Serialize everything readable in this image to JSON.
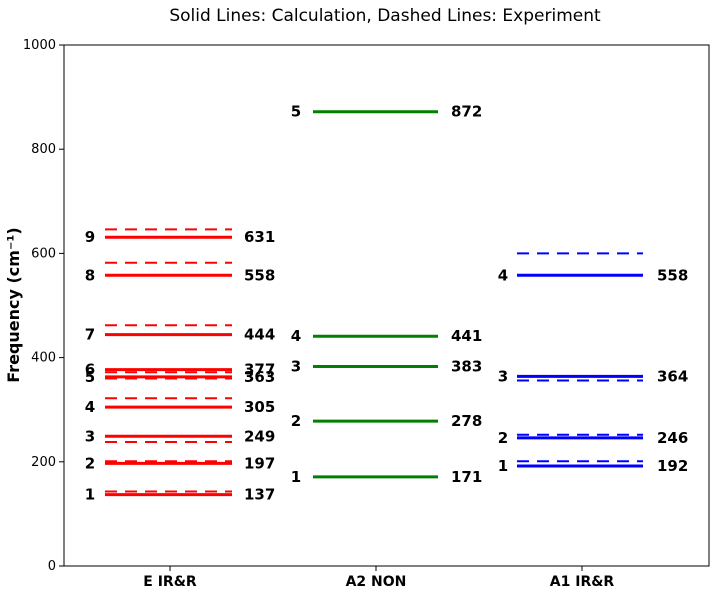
{
  "chart_data": {
    "type": "level-diagram",
    "title": "Solid Lines: Calculation, Dashed Lines: Experiment",
    "ylabel": "Frequency (cm⁻¹)",
    "ylim": [
      0,
      1000
    ],
    "yticks": [
      "0",
      "200",
      "400",
      "600",
      "800",
      "1000"
    ],
    "grid": false,
    "groups": [
      {
        "name": "E IR&R",
        "color": "#ff0000",
        "levels": [
          {
            "index": "1",
            "calc": 137,
            "exp": 143
          },
          {
            "index": "2",
            "calc": 197,
            "exp": 201
          },
          {
            "index": "3",
            "calc": 249,
            "exp": 238
          },
          {
            "index": "4",
            "calc": 305,
            "exp": 322
          },
          {
            "index": "5",
            "calc": 363,
            "exp": 360
          },
          {
            "index": "6",
            "calc": 377,
            "exp": 372
          },
          {
            "index": "7",
            "calc": 444,
            "exp": 462
          },
          {
            "index": "8",
            "calc": 558,
            "exp": 582
          },
          {
            "index": "9",
            "calc": 631,
            "exp": 646
          }
        ]
      },
      {
        "name": "A2 NON",
        "color": "#008000",
        "levels": [
          {
            "index": "1",
            "calc": 171,
            "exp": null
          },
          {
            "index": "2",
            "calc": 278,
            "exp": null
          },
          {
            "index": "3",
            "calc": 383,
            "exp": null
          },
          {
            "index": "4",
            "calc": 441,
            "exp": null
          },
          {
            "index": "5",
            "calc": 872,
            "exp": null
          }
        ]
      },
      {
        "name": "A1 IR&R",
        "color": "#0000ff",
        "levels": [
          {
            "index": "1",
            "calc": 192,
            "exp": 201
          },
          {
            "index": "2",
            "calc": 246,
            "exp": 252
          },
          {
            "index": "3",
            "calc": 364,
            "exp": 356
          },
          {
            "index": "4",
            "calc": 558,
            "exp": 600
          }
        ]
      }
    ]
  }
}
